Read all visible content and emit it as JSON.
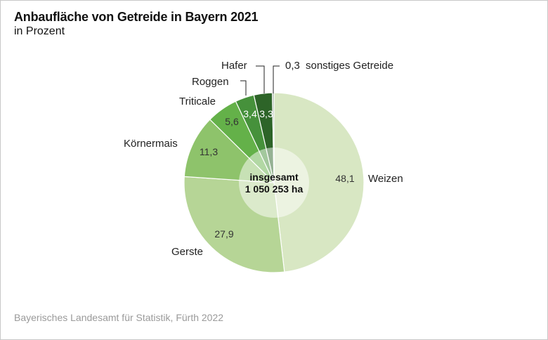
{
  "title": "Anbaufläche von Getreide in Bayern 2021",
  "subtitle": "in Prozent",
  "source": "Bayerisches Landesamt für Statistik, Fürth 2022",
  "chart_data": {
    "type": "pie",
    "variant": "donut",
    "center_label": [
      "insgesamt",
      "1 050 253 ha"
    ],
    "categories": [
      "Weizen",
      "Gerste",
      "Körnermais",
      "Triticale",
      "Roggen",
      "Hafer",
      "sonstiges Getreide"
    ],
    "values": [
      48.1,
      27.9,
      11.3,
      5.6,
      3.4,
      3.3,
      0.3
    ],
    "value_labels": [
      "48,1",
      "27,9",
      "11,3",
      "5,6",
      "3,4",
      "3,3",
      "0,3"
    ],
    "colors": [
      "#d8e7c3",
      "#b6d596",
      "#8ec36b",
      "#64b149",
      "#46913b",
      "#2d6428",
      "#9aa99a"
    ]
  }
}
